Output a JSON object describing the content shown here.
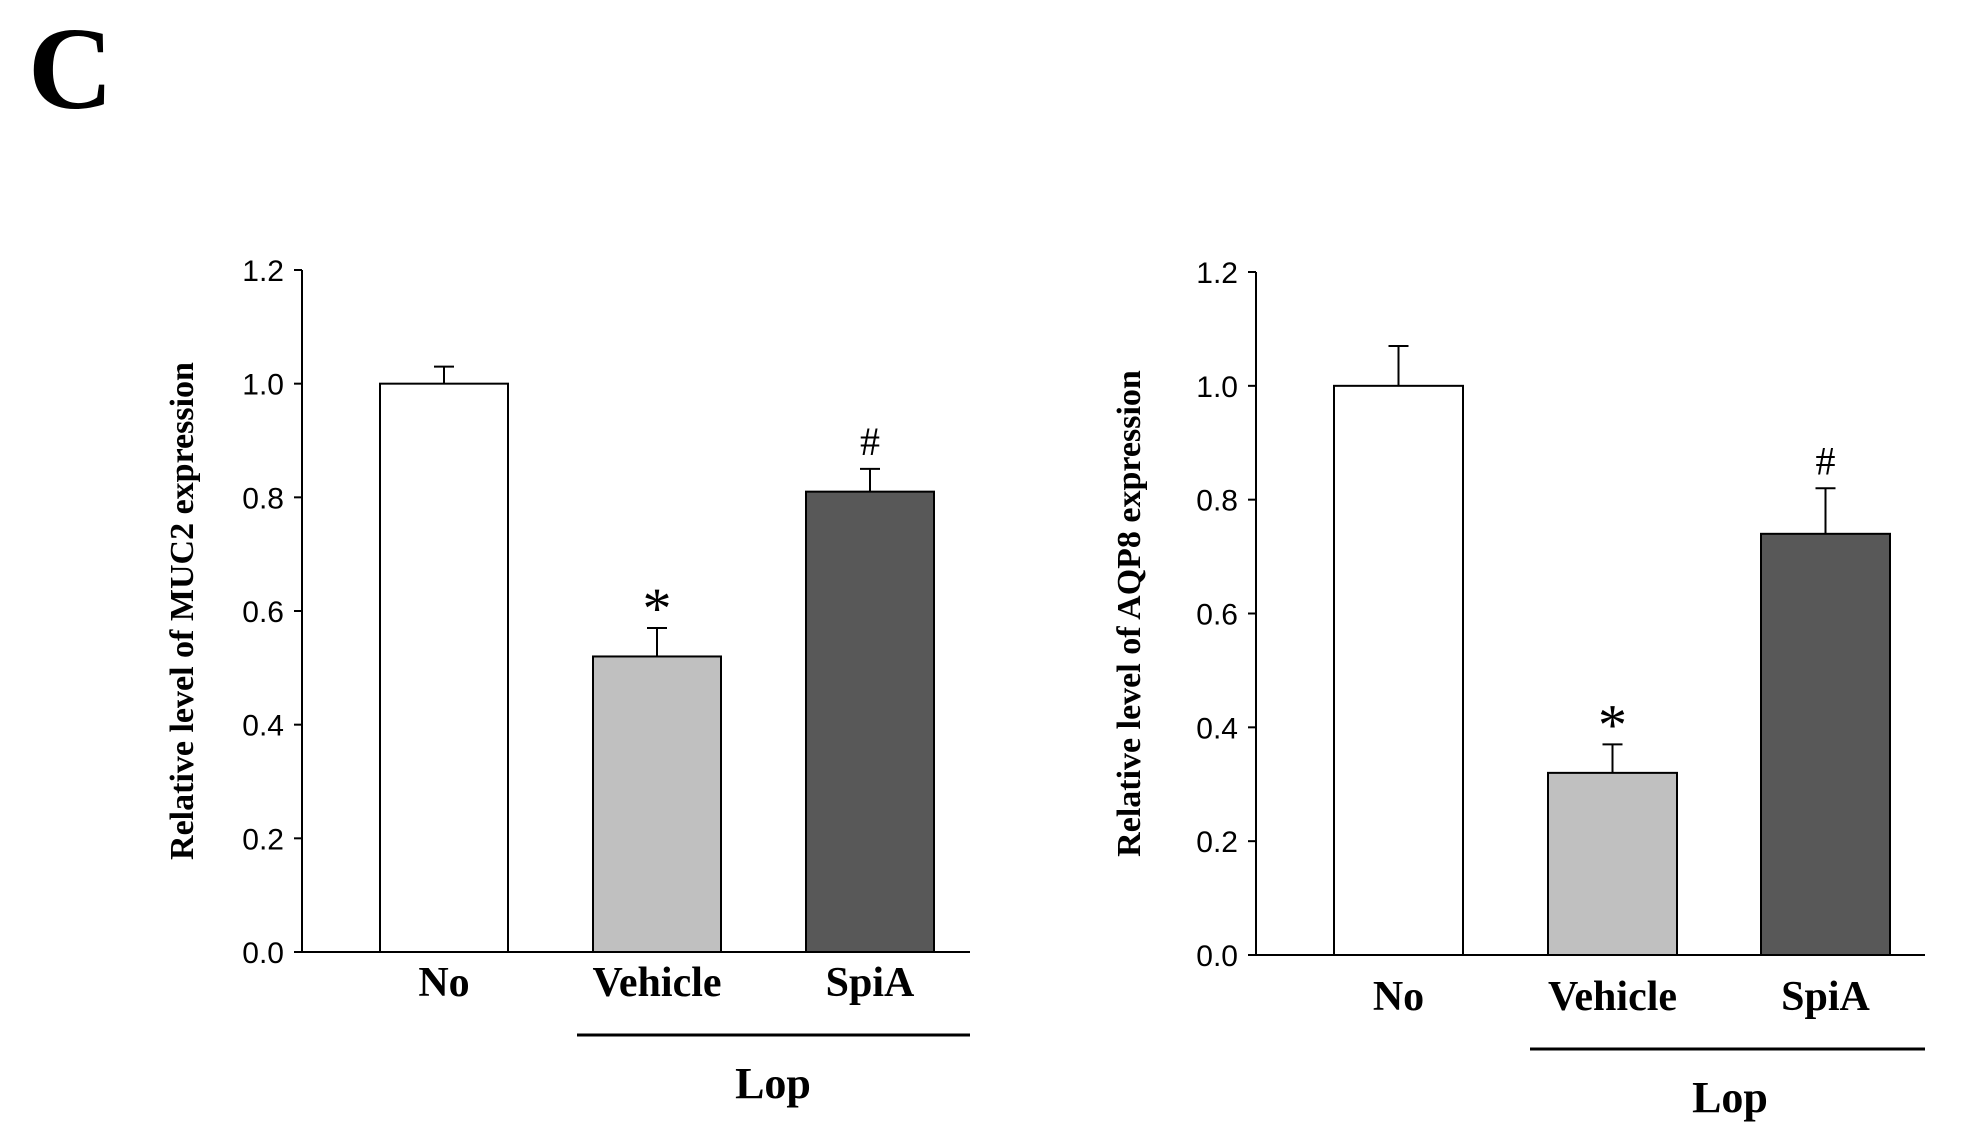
{
  "panel_label": "C",
  "chart_data": [
    {
      "type": "bar",
      "ylabel": "Relative level of MUC2 expression",
      "ylim": [
        0,
        1.2
      ],
      "yticks": [
        "0.0",
        "0.2",
        "0.4",
        "0.6",
        "0.8",
        "1.0",
        "1.2"
      ],
      "categories": [
        "No",
        "Vehicle",
        "SpiA"
      ],
      "values": [
        1.0,
        0.52,
        0.81
      ],
      "errors": [
        0.03,
        0.05,
        0.04
      ],
      "colors": [
        "#ffffff",
        "#c0c0c0",
        "#585858"
      ],
      "significance": [
        "",
        "*",
        "#"
      ],
      "group_label": "Lop"
    },
    {
      "type": "bar",
      "ylabel": "Relative level of AQP8 expression",
      "ylim": [
        0,
        1.2
      ],
      "yticks": [
        "0.0",
        "0.2",
        "0.4",
        "0.6",
        "0.8",
        "1.0",
        "1.2"
      ],
      "categories": [
        "No",
        "Vehicle",
        "SpiA"
      ],
      "values": [
        1.0,
        0.32,
        0.74
      ],
      "errors": [
        0.07,
        0.05,
        0.08
      ],
      "colors": [
        "#ffffff",
        "#c0c0c0",
        "#585858"
      ],
      "significance": [
        "",
        "*",
        "#"
      ],
      "group_label": "Lop"
    }
  ]
}
